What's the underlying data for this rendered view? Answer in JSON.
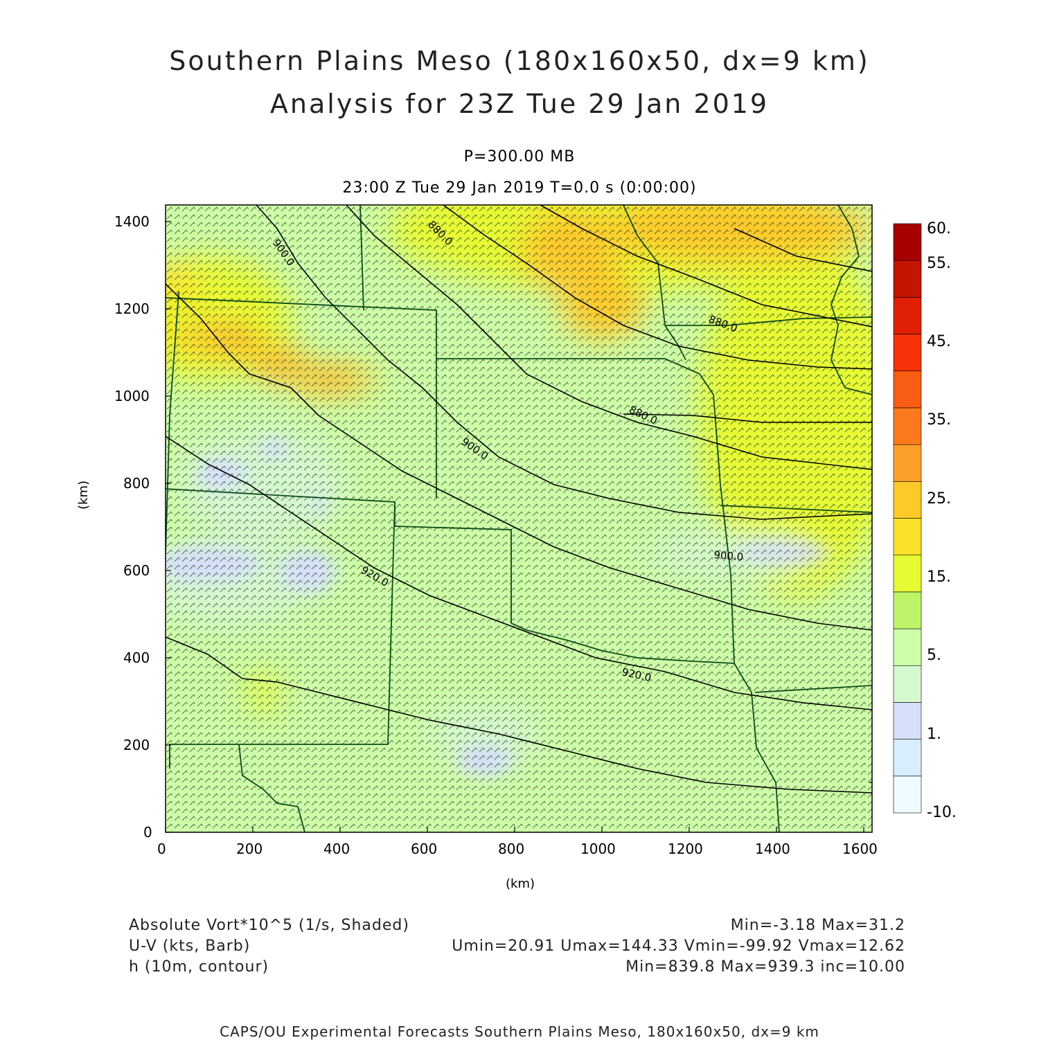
{
  "header": {
    "title_line1": "Southern Plains Meso (180x160x50, dx=9 km)",
    "title_line2": "Analysis for 23Z Tue 29 Jan 2019",
    "pressure": "P=300.00 MB",
    "time_line": "23:00 Z Tue 29 Jan 2019    T=0.0 s (0:00:00)"
  },
  "axes": {
    "x_label": "(km)",
    "y_label": "(km)",
    "x_ticks": [
      "0",
      "200",
      "400",
      "600",
      "800",
      "1000",
      "1200",
      "1400",
      "1600"
    ],
    "y_ticks": [
      "0",
      "200",
      "400",
      "600",
      "800",
      "1000",
      "1200",
      "1400"
    ],
    "x_range": [
      0,
      1620
    ],
    "y_range": [
      0,
      1440
    ]
  },
  "colorbar": {
    "labels": [
      "60.",
      "55.",
      "45.",
      "35.",
      "25.",
      "15.",
      "5.",
      "1.",
      "-10."
    ],
    "colors": [
      "#f0fbff",
      "#d8eefe",
      "#d6e0fa",
      "#d5f8cf",
      "#cdfda7",
      "#bef468",
      "#e6fb32",
      "#fbe22a",
      "#fdca2a",
      "#fda029",
      "#fc7a1c",
      "#f85d13",
      "#f83208",
      "#e01f05",
      "#c51500",
      "#a80000"
    ]
  },
  "contours": {
    "labels": [
      "900.0",
      "880.0",
      "880.0",
      "880.0",
      "900.0",
      "920.0",
      "900.0",
      "920.0",
      "880.0"
    ]
  },
  "legend": {
    "line1_left": "Absolute Vort*10^5 (1/s, Shaded)",
    "line1_right": "Min=-3.18 Max=31.2",
    "line2_left": "U-V (kts, Barb)",
    "line2_right": "Umin=20.91 Umax=144.33 Vmin=-99.92 Vmax=12.62",
    "line3_left": "h (10m, contour)",
    "line3_right": "Min=839.8 Max=939.3 inc=10.00"
  },
  "footer": "CAPS/OU Experimental Forecasts  Southern Plains Meso, 180x160x50, dx=9 km"
}
